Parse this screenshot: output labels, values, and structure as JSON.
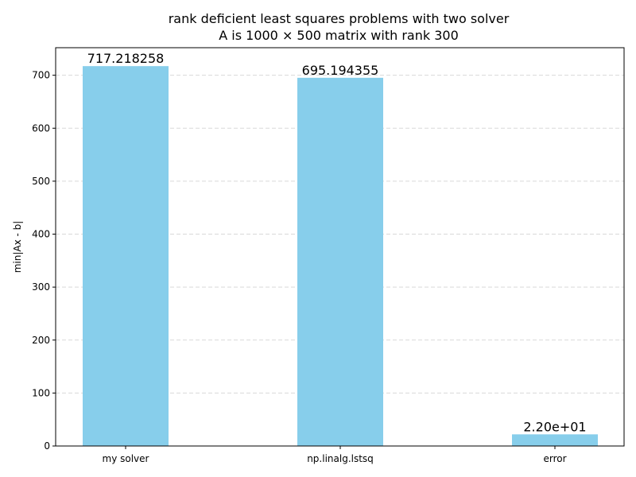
{
  "chart_data": {
    "type": "bar",
    "title_line1": "rank deficient least squares problems with two solver",
    "title_line2": "A is 1000 × 500 matrix with rank 300",
    "xlabel": "",
    "ylabel": "min|Ax - b|",
    "categories": [
      "my solver",
      "np.linalg.lstsq",
      "error"
    ],
    "values": [
      717.218258,
      695.194355,
      22.0
    ],
    "value_labels": [
      "717.218258",
      "695.194355",
      "2.20e+01"
    ],
    "ylim": [
      0,
      752
    ],
    "yticks": [
      0,
      100,
      200,
      300,
      400,
      500,
      600,
      700
    ],
    "ytick_labels": [
      "0",
      "100",
      "200",
      "300",
      "400",
      "500",
      "600",
      "700"
    ],
    "grid": "y-dashed",
    "bar_color": "#87ceeb",
    "grid_color": "#d9d9d9"
  }
}
